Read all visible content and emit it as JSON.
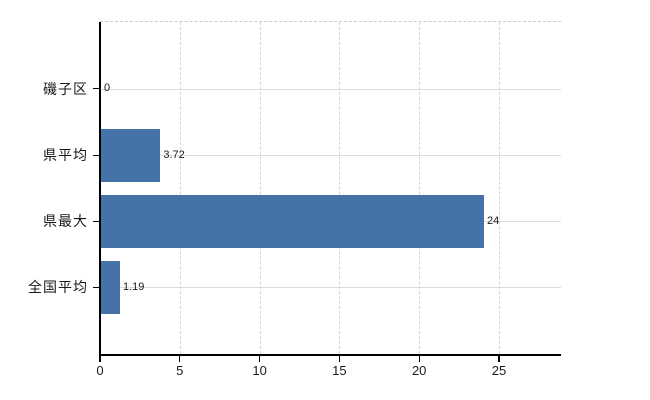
{
  "chart_data": {
    "type": "bar",
    "orientation": "horizontal",
    "title": "",
    "xlabel": "",
    "ylabel": "",
    "categories": [
      "磯子区",
      "県平均",
      "県最大",
      "全国平均"
    ],
    "values": [
      0,
      3.72,
      24,
      1.19
    ],
    "value_labels": [
      "0",
      "3.72",
      "24",
      "1.19"
    ],
    "x_ticks": [
      0,
      5,
      10,
      15,
      20,
      25
    ],
    "x_tick_labels": [
      "0",
      "5",
      "10",
      "15",
      "20",
      "25"
    ],
    "xlim": [
      0,
      28.9
    ],
    "grid": true,
    "legend": false,
    "colors": {
      "bar": "#4572a7",
      "grid": "#dcdcdc",
      "grid_dashed": "#d6d6d6",
      "top_border": "#cccccc",
      "axis": "#000000",
      "text": "#1a1a1a",
      "background": "#ffffff"
    }
  }
}
